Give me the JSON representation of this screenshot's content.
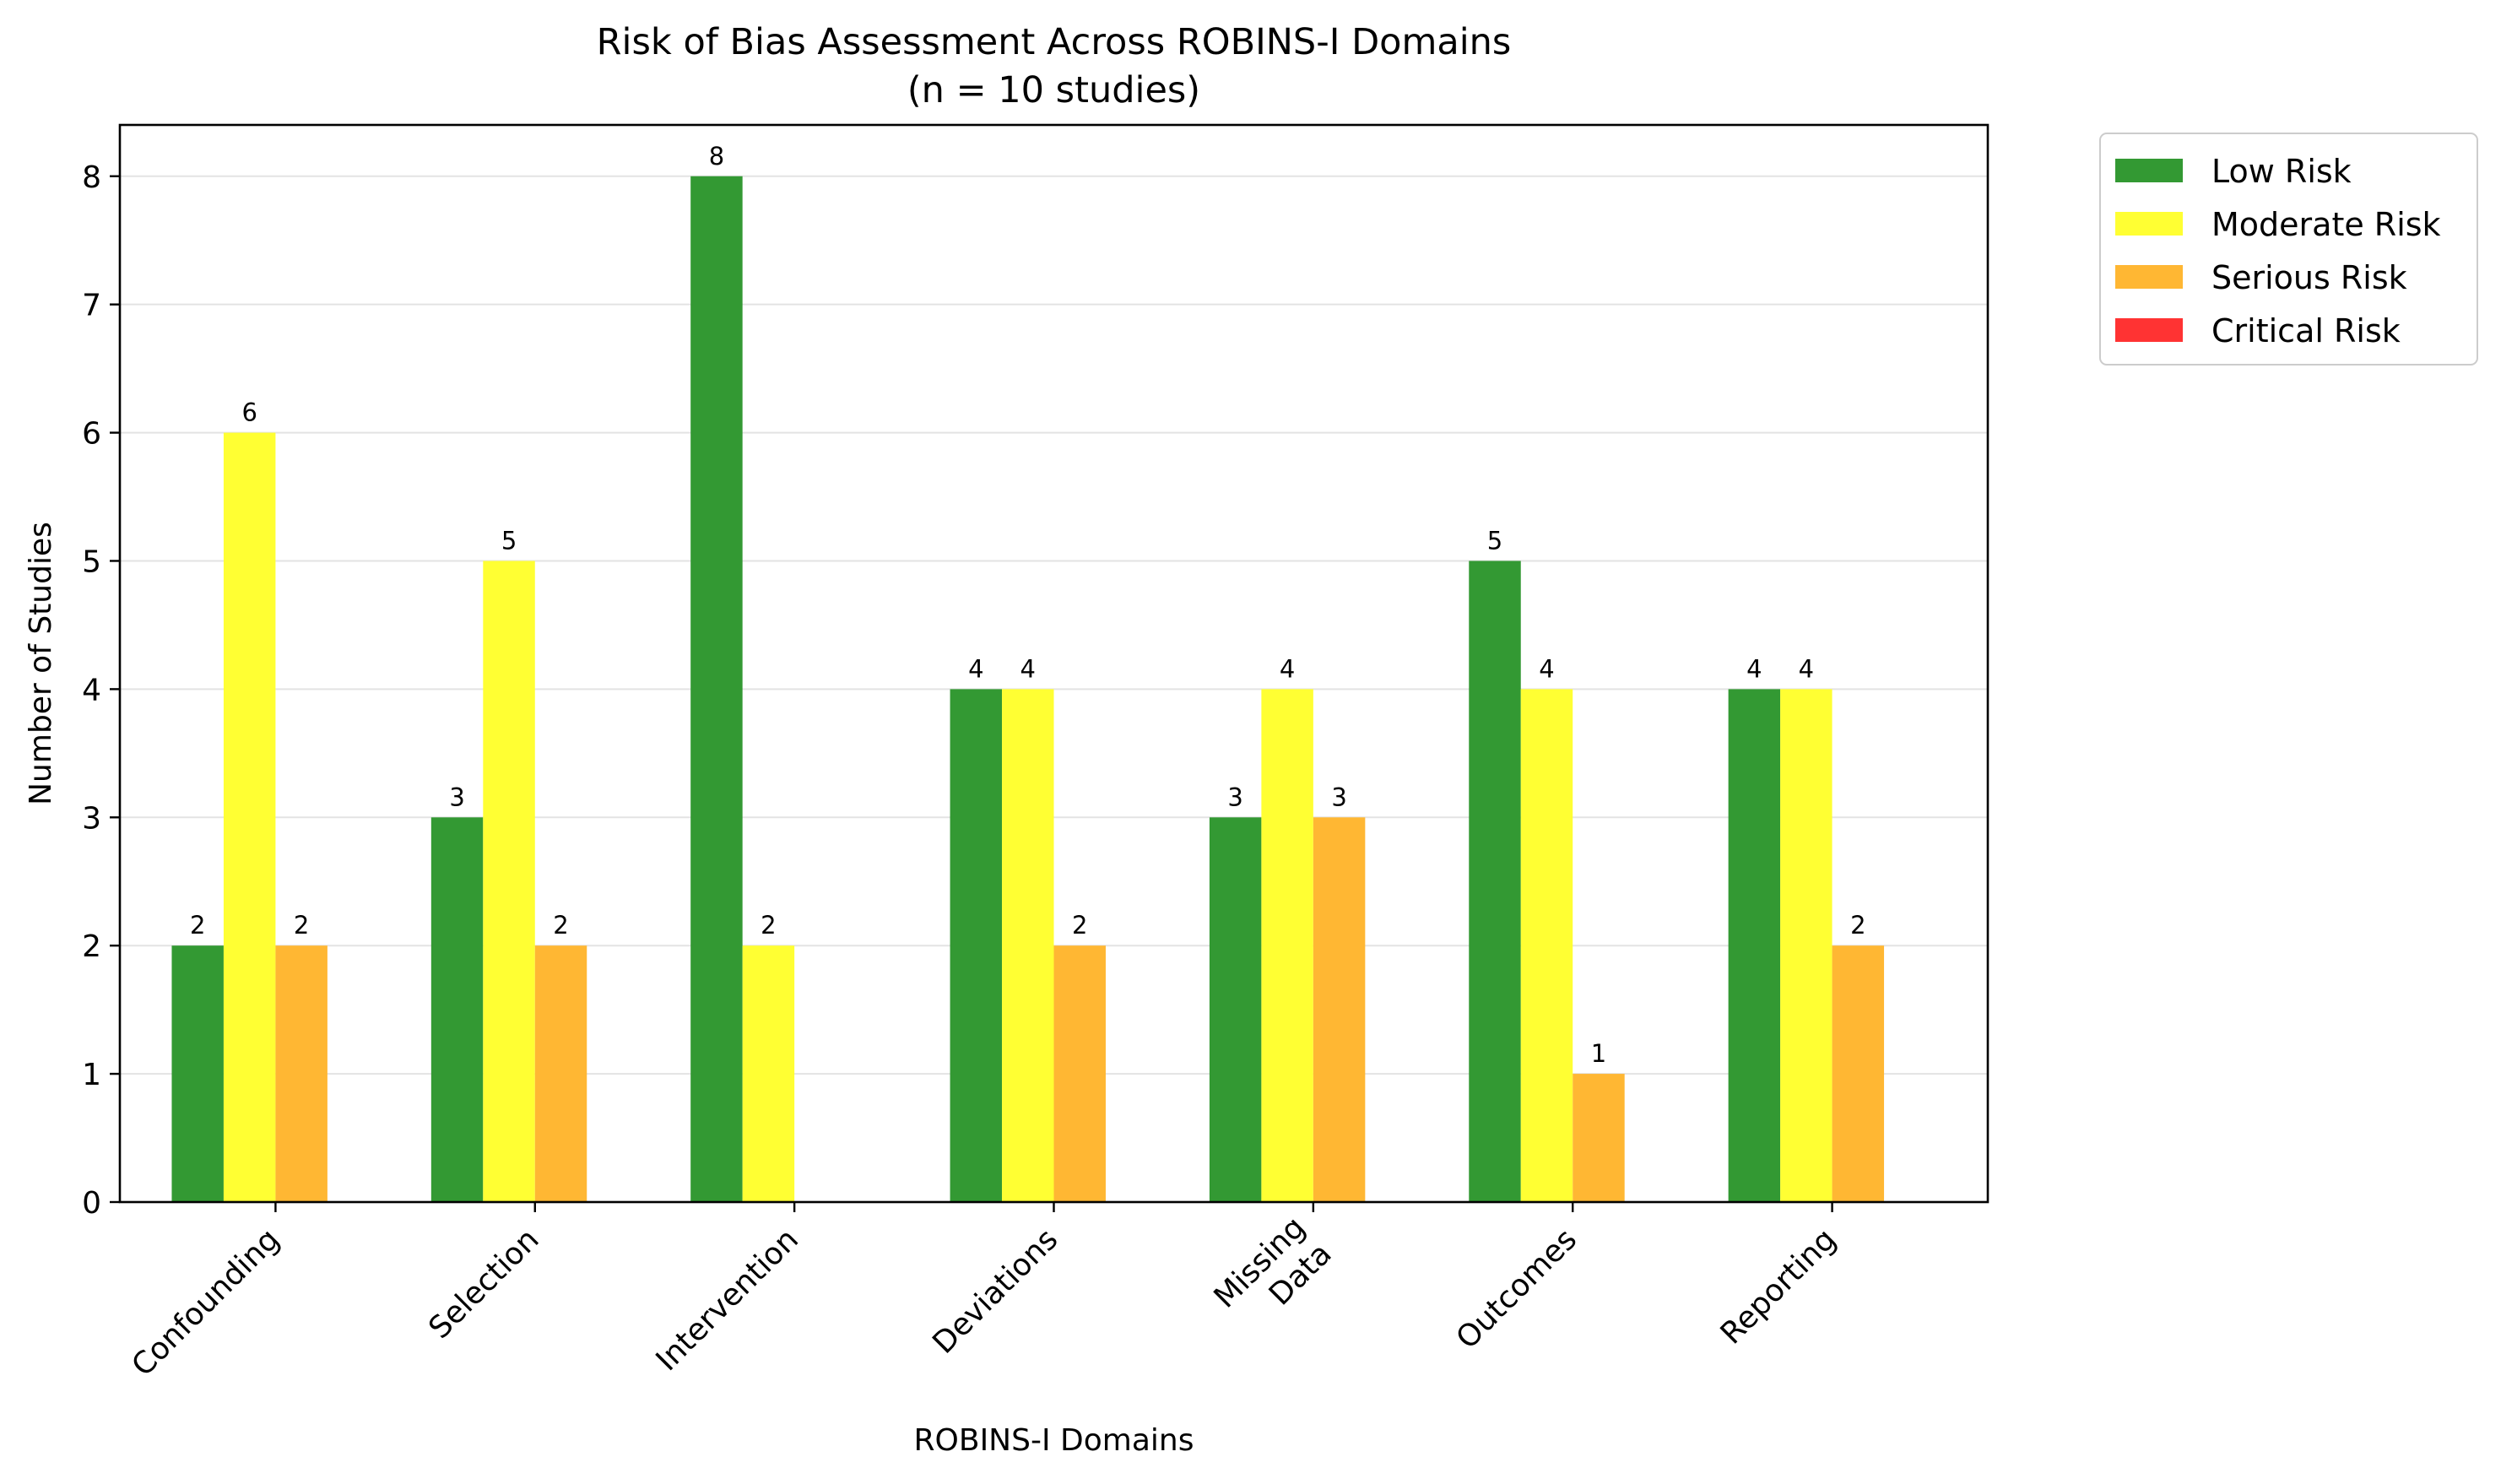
{
  "chart_data": {
    "type": "bar",
    "title": "Risk of Bias Assessment Across ROBINS-I Domains",
    "subtitle": "(n = 10 studies)",
    "xlabel": "ROBINS-I Domains",
    "ylabel": "Number of Studies",
    "categories": [
      "Confounding",
      "Selection",
      "Intervention",
      "Deviations",
      "Missing\nData",
      "Outcomes",
      "Reporting"
    ],
    "series": [
      {
        "name": "Low Risk",
        "color": "#339933",
        "values": [
          2,
          3,
          8,
          4,
          3,
          5,
          4
        ]
      },
      {
        "name": "Moderate Risk",
        "color": "#ffff33",
        "values": [
          6,
          5,
          2,
          4,
          4,
          4,
          4
        ]
      },
      {
        "name": "Serious Risk",
        "color": "#ffb733",
        "values": [
          2,
          2,
          0,
          2,
          3,
          1,
          2
        ]
      },
      {
        "name": "Critical Risk",
        "color": "#ff3333",
        "values": [
          0,
          0,
          0,
          0,
          0,
          0,
          0
        ]
      }
    ],
    "ylim": [
      0,
      8.4
    ],
    "yticks": [
      0,
      1,
      2,
      3,
      4,
      5,
      6,
      7,
      8
    ],
    "grid": "horizontal",
    "legend_position": "outside-top-right"
  }
}
